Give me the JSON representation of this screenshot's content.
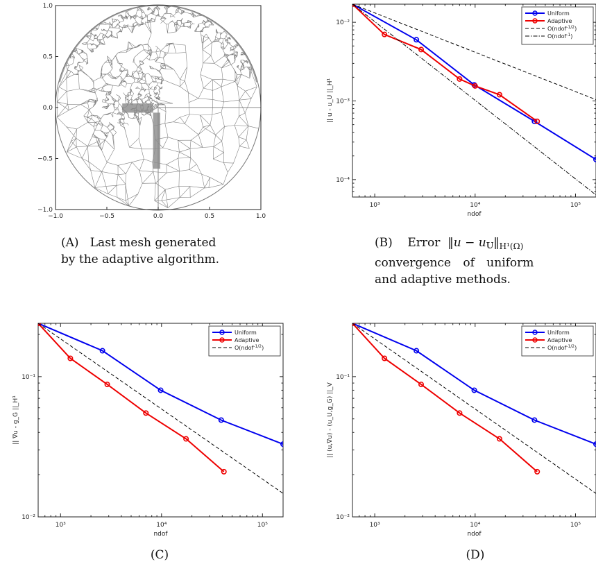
{
  "captions": {
    "a": {
      "tag": "(A)",
      "text": "Last mesh generated",
      "text2": "by the adaptive algorithm."
    },
    "b": {
      "tag": "(B)",
      "word1": "Error",
      "math": "‖u − u",
      "math_sub_bb": "𝕌",
      "math_end": "‖",
      "norm_sub": "H¹(Ω)",
      "line2": "convergence of uniform",
      "line3": "and adaptive methods."
    },
    "c": {
      "tag": "(C)"
    },
    "d": {
      "tag": "(D)"
    }
  },
  "chart_data": [
    {
      "id": "A",
      "type": "mesh",
      "xlim": [
        -1.0,
        1.0
      ],
      "ylim": [
        -1.0,
        1.0
      ],
      "xticks": [
        "−1.0",
        "−0.5",
        "0.0",
        "0.5",
        "1.0"
      ],
      "yticks": [
        "−1.0",
        "−0.5",
        "0.0",
        "0.5",
        "1.0"
      ],
      "colors": {
        "mesh": "#808080",
        "frame": "#222222"
      }
    },
    {
      "id": "B",
      "type": "line",
      "scale": "log-log",
      "xlabel": "ndof",
      "ylabel": "|| u - u_U ||_H¹",
      "xlim": [
        600,
        160000
      ],
      "ylim": [
        6e-05,
        0.017
      ],
      "xtick_labels": [
        "10³",
        "10⁴",
        "10⁵"
      ],
      "ytick_labels": [
        "10⁻⁴",
        "10⁻³",
        "10⁻²"
      ],
      "legend_position": "top-right",
      "series": [
        {
          "name": "Uniform",
          "color": "#0000ee",
          "style": "solid-marker",
          "x": [
            600,
            2600,
            9800,
            39000,
            160000
          ],
          "y": [
            0.017,
            0.006,
            0.0016,
            0.00055,
            0.00018
          ]
        },
        {
          "name": "Adaptive",
          "color": "#ee0000",
          "style": "solid-marker",
          "x": [
            600,
            1250,
            2900,
            7000,
            10000,
            17500,
            41500
          ],
          "y": [
            0.017,
            0.007,
            0.0045,
            0.0019,
            0.00155,
            0.0012,
            0.00055
          ]
        },
        {
          "name": "O(ndof^-1/2)",
          "color": "#000000",
          "style": "dashed",
          "x": [
            600,
            160000
          ],
          "y": [
            0.017,
            0.00104
          ]
        },
        {
          "name": "O(ndof^-1)",
          "color": "#000000",
          "style": "dashdot",
          "x": [
            600,
            160000
          ],
          "y": [
            0.017,
            6.38e-05
          ]
        }
      ]
    },
    {
      "id": "C",
      "type": "line",
      "scale": "log-log",
      "xlabel": "ndof",
      "ylabel": "|| ∇u - g_G ||_H¹",
      "xlim": [
        600,
        160000
      ],
      "ylim": [
        0.01,
        0.24
      ],
      "xtick_labels": [
        "10³",
        "10⁴",
        "10⁵"
      ],
      "ytick_labels": [
        "10⁻²",
        "10⁻¹"
      ],
      "legend_position": "top-right",
      "series": [
        {
          "name": "Uniform",
          "color": "#0000ee",
          "style": "solid-marker",
          "x": [
            600,
            2600,
            9800,
            39000,
            160000
          ],
          "y": [
            0.24,
            0.153,
            0.08,
            0.049,
            0.033
          ]
        },
        {
          "name": "Adaptive",
          "color": "#ee0000",
          "style": "solid-marker",
          "x": [
            600,
            1250,
            2900,
            7000,
            17500,
            41500
          ],
          "y": [
            0.24,
            0.135,
            0.088,
            0.055,
            0.036,
            0.021
          ]
        },
        {
          "name": "O(ndof^-1/2)",
          "color": "#000000",
          "style": "dashed",
          "x": [
            600,
            160000
          ],
          "y": [
            0.24,
            0.0147
          ]
        }
      ]
    },
    {
      "id": "D",
      "type": "line",
      "scale": "log-log",
      "xlabel": "ndof",
      "ylabel": "|| (u,∇u) - (u_U,g_G) ||_V",
      "xlim": [
        600,
        160000
      ],
      "ylim": [
        0.01,
        0.24
      ],
      "xtick_labels": [
        "10³",
        "10⁴",
        "10⁵"
      ],
      "ytick_labels": [
        "10⁻²",
        "10⁻¹"
      ],
      "legend_position": "top-right",
      "series": [
        {
          "name": "Uniform",
          "color": "#0000ee",
          "style": "solid-marker",
          "x": [
            600,
            2600,
            9800,
            39000,
            160000
          ],
          "y": [
            0.24,
            0.153,
            0.08,
            0.049,
            0.033
          ]
        },
        {
          "name": "Adaptive",
          "color": "#ee0000",
          "style": "solid-marker",
          "x": [
            600,
            1250,
            2900,
            7000,
            17500,
            41500
          ],
          "y": [
            0.24,
            0.135,
            0.088,
            0.055,
            0.036,
            0.021
          ]
        },
        {
          "name": "O(ndof^-1/2)",
          "color": "#000000",
          "style": "dashed",
          "x": [
            600,
            160000
          ],
          "y": [
            0.24,
            0.0147
          ]
        }
      ]
    }
  ]
}
